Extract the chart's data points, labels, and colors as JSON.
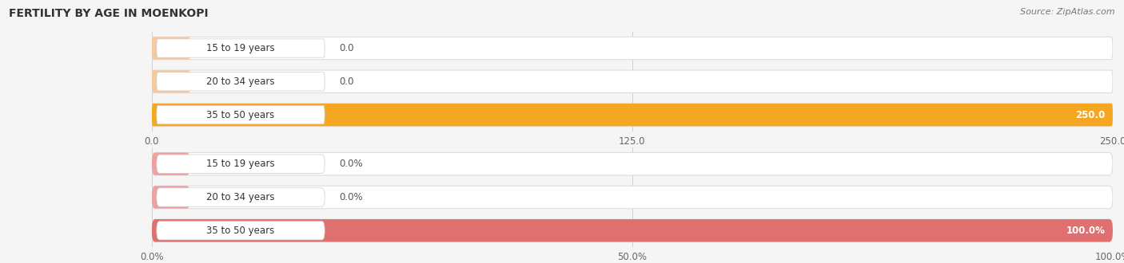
{
  "title": "FERTILITY BY AGE IN MOENKOPI",
  "source": "Source: ZipAtlas.com",
  "background_color": "#f5f5f5",
  "chart1": {
    "categories": [
      "15 to 19 years",
      "20 to 34 years",
      "35 to 50 years"
    ],
    "values": [
      0.0,
      0.0,
      250.0
    ],
    "xlim": [
      0,
      250
    ],
    "xticks": [
      0.0,
      125.0,
      250.0
    ],
    "bar_colors": [
      "#f5c9a0",
      "#f5c9a0",
      "#f5a623"
    ],
    "bar_bg_color": "#ffffff",
    "bar_outline_color": "#dddddd"
  },
  "chart2": {
    "categories": [
      "15 to 19 years",
      "20 to 34 years",
      "35 to 50 years"
    ],
    "values": [
      0.0,
      0.0,
      100.0
    ],
    "xlim": [
      0,
      100
    ],
    "xticks": [
      0.0,
      50.0,
      100.0
    ],
    "xtick_labels": [
      "0.0%",
      "50.0%",
      "100.0%"
    ],
    "bar_colors": [
      "#f0a0a0",
      "#f0a0a0",
      "#e07070"
    ],
    "bar_bg_color": "#ffffff",
    "bar_outline_color": "#dddddd"
  }
}
